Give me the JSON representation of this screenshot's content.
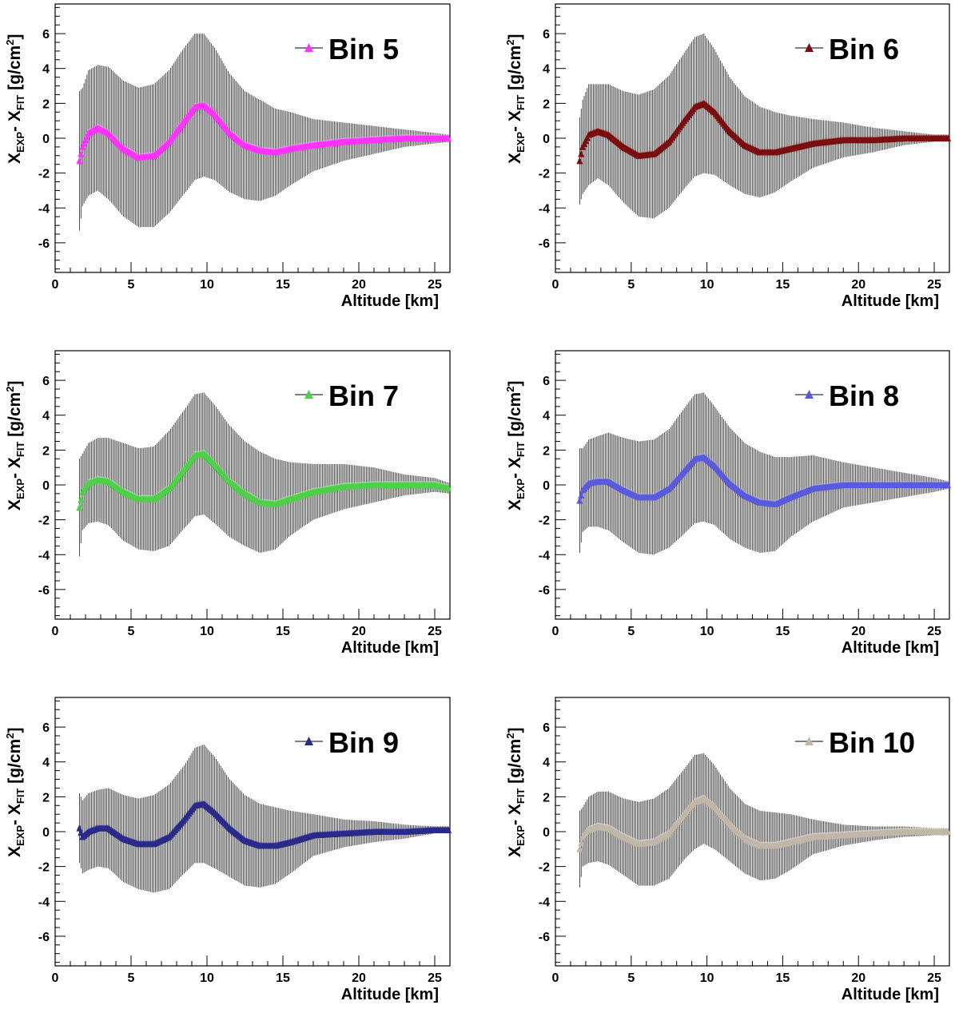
{
  "chart_data": [
    {
      "type": "line",
      "legend_label": "Bin 5",
      "color": "#ff33ff",
      "xlabel": "Altitude  [km]",
      "ylabel": {
        "base1": "X",
        "sub1": "EXP",
        "sep": "- ",
        "base2": "X",
        "sub2": "FIT",
        "unit_a": "[g/cm",
        "unit_sup": "2",
        "unit_b": "]"
      },
      "xlim": [
        0,
        26
      ],
      "ylim": [
        -7.7,
        7.7
      ],
      "x_ticks": [
        "0",
        "5",
        "10",
        "15",
        "20",
        "25"
      ],
      "y_ticks": [
        "-6",
        "-4",
        "-2",
        "0",
        "2",
        "4",
        "6"
      ],
      "legend_position": "top-right",
      "series": [
        {
          "name": "Bin 5",
          "x": [
            1.6,
            1.8,
            2.2,
            2.8,
            3.5,
            4.5,
            5.5,
            6.5,
            7.5,
            8.5,
            9.2,
            9.8,
            10.5,
            11.5,
            12.5,
            13.5,
            14.5,
            15.5,
            17,
            19,
            21,
            23,
            25,
            26
          ],
          "y": [
            -1.3,
            -0.5,
            0.3,
            0.6,
            0.3,
            -0.6,
            -1.1,
            -1.0,
            -0.2,
            1.0,
            1.8,
            1.9,
            1.4,
            0.3,
            -0.4,
            -0.7,
            -0.8,
            -0.6,
            -0.4,
            -0.2,
            -0.1,
            0.0,
            0.0,
            0.0
          ],
          "err": [
            4.0,
            3.4,
            3.6,
            3.6,
            3.8,
            3.9,
            4.0,
            4.1,
            4.1,
            4.2,
            4.2,
            4.1,
            3.8,
            3.4,
            3.1,
            2.9,
            2.5,
            2.1,
            1.5,
            1.1,
            0.8,
            0.5,
            0.3,
            0.2
          ]
        }
      ]
    },
    {
      "type": "line",
      "legend_label": "Bin 6",
      "color": "#7a0e0e",
      "xlabel": "Altitude  [km]",
      "ylabel": {
        "base1": "X",
        "sub1": "EXP",
        "sep": "- ",
        "base2": "X",
        "sub2": "FIT",
        "unit_a": "[g/cm",
        "unit_sup": "2",
        "unit_b": "]"
      },
      "xlim": [
        0,
        26
      ],
      "ylim": [
        -7.7,
        7.7
      ],
      "x_ticks": [
        "0",
        "5",
        "10",
        "15",
        "20",
        "25"
      ],
      "y_ticks": [
        "-6",
        "-4",
        "-2",
        "0",
        "2",
        "4",
        "6"
      ],
      "legend_position": "top-right",
      "series": [
        {
          "name": "Bin 6",
          "x": [
            1.6,
            1.8,
            2.2,
            2.8,
            3.5,
            4.5,
            5.5,
            6.5,
            7.5,
            8.5,
            9.2,
            9.8,
            10.5,
            11.5,
            12.5,
            13.5,
            14.5,
            15.5,
            17,
            19,
            21,
            23,
            25,
            26
          ],
          "y": [
            -1.3,
            -0.5,
            0.2,
            0.4,
            0.2,
            -0.5,
            -1.0,
            -0.9,
            -0.2,
            1.0,
            1.8,
            2.0,
            1.5,
            0.4,
            -0.4,
            -0.8,
            -0.8,
            -0.6,
            -0.3,
            -0.1,
            -0.1,
            0.0,
            0.0,
            0.0
          ],
          "err": [
            2.5,
            2.7,
            2.9,
            2.7,
            2.9,
            3.2,
            3.5,
            3.7,
            3.8,
            3.9,
            4.0,
            4.0,
            3.6,
            3.1,
            2.8,
            2.6,
            2.3,
            1.9,
            1.4,
            1.0,
            0.7,
            0.4,
            0.2,
            0.2
          ]
        }
      ]
    },
    {
      "type": "line",
      "legend_label": "Bin 7",
      "color": "#4fcf4a",
      "xlabel": "Altitude  [km]",
      "ylabel": {
        "base1": "X",
        "sub1": "EXP",
        "sep": "- ",
        "base2": "X",
        "sub2": "FIT",
        "unit_a": "[g/cm",
        "unit_sup": "2",
        "unit_b": "]"
      },
      "xlim": [
        0,
        26
      ],
      "ylim": [
        -7.7,
        7.7
      ],
      "x_ticks": [
        "0",
        "5",
        "10",
        "15",
        "20",
        "25"
      ],
      "y_ticks": [
        "-6",
        "-4",
        "-2",
        "0",
        "2",
        "4",
        "6"
      ],
      "legend_position": "top-right",
      "series": [
        {
          "name": "Bin 7",
          "x": [
            1.6,
            1.8,
            2.2,
            2.8,
            3.5,
            4.5,
            5.5,
            6.5,
            7.5,
            8.5,
            9.2,
            9.8,
            10.5,
            11.5,
            12.5,
            13.5,
            14.5,
            15.5,
            17,
            19,
            21,
            23,
            25,
            26
          ],
          "y": [
            -1.3,
            -0.4,
            0.1,
            0.3,
            0.2,
            -0.4,
            -0.8,
            -0.8,
            -0.2,
            0.9,
            1.7,
            1.8,
            1.2,
            0.2,
            -0.5,
            -1.0,
            -1.1,
            -0.8,
            -0.4,
            -0.1,
            0.0,
            0.0,
            0.0,
            -0.2
          ],
          "err": [
            2.8,
            2.2,
            2.3,
            2.4,
            2.5,
            2.8,
            2.9,
            3.0,
            3.3,
            3.4,
            3.5,
            3.5,
            3.4,
            3.2,
            3.0,
            2.9,
            2.6,
            2.1,
            1.6,
            1.3,
            1.0,
            0.6,
            0.4,
            0.3
          ]
        }
      ]
    },
    {
      "type": "line",
      "legend_label": "Bin 8",
      "color": "#5a5adc",
      "xlabel": "Altitude  [km]",
      "ylabel": {
        "base1": "X",
        "sub1": "EXP",
        "sep": "- ",
        "base2": "X",
        "sub2": "FIT",
        "unit_a": "[g/cm",
        "unit_sup": "2",
        "unit_b": "]"
      },
      "xlim": [
        0,
        26
      ],
      "ylim": [
        -7.7,
        7.7
      ],
      "x_ticks": [
        "0",
        "5",
        "10",
        "15",
        "20",
        "25"
      ],
      "y_ticks": [
        "-6",
        "-4",
        "-2",
        "0",
        "2",
        "4",
        "6"
      ],
      "legend_position": "top-right",
      "series": [
        {
          "name": "Bin 8",
          "x": [
            1.6,
            1.8,
            2.2,
            2.8,
            3.5,
            4.5,
            5.5,
            6.5,
            7.5,
            8.5,
            9.2,
            9.8,
            10.5,
            11.5,
            12.5,
            13.5,
            14.5,
            15.5,
            17,
            19,
            21,
            23,
            25,
            26
          ],
          "y": [
            -0.9,
            -0.3,
            0.1,
            0.2,
            0.2,
            -0.3,
            -0.7,
            -0.7,
            -0.2,
            0.8,
            1.5,
            1.6,
            1.1,
            0.1,
            -0.6,
            -1.0,
            -1.1,
            -0.7,
            -0.2,
            0.0,
            0.0,
            0.0,
            0.0,
            0.0
          ],
          "err": [
            3.0,
            2.4,
            2.5,
            2.6,
            2.8,
            3.0,
            3.2,
            3.3,
            3.4,
            3.6,
            3.7,
            3.7,
            3.4,
            3.2,
            3.0,
            2.9,
            2.7,
            2.3,
            1.9,
            1.3,
            1.0,
            0.7,
            0.4,
            0.2
          ]
        }
      ]
    },
    {
      "type": "line",
      "legend_label": "Bin 9",
      "color": "#2a2a8a",
      "xlabel": "Altitude  [km]",
      "ylabel": {
        "base1": "X",
        "sub1": "EXP",
        "sep": "- ",
        "base2": "X",
        "sub2": "FIT",
        "unit_a": "[g/cm",
        "unit_sup": "2",
        "unit_b": "]"
      },
      "xlim": [
        0,
        26
      ],
      "ylim": [
        -7.7,
        7.7
      ],
      "x_ticks": [
        "0",
        "5",
        "10",
        "15",
        "20",
        "25"
      ],
      "y_ticks": [
        "-6",
        "-4",
        "-2",
        "0",
        "2",
        "4",
        "6"
      ],
      "legend_position": "top-right",
      "series": [
        {
          "name": "Bin 9",
          "x": [
            1.6,
            1.8,
            2.2,
            2.8,
            3.5,
            4.5,
            5.5,
            6.5,
            7.5,
            8.5,
            9.2,
            9.8,
            10.5,
            11.5,
            12.5,
            13.5,
            14.5,
            15.5,
            17,
            19,
            21,
            23,
            25,
            26
          ],
          "y": [
            0.2,
            -0.3,
            0.0,
            0.2,
            0.2,
            -0.4,
            -0.7,
            -0.7,
            -0.3,
            0.7,
            1.5,
            1.6,
            1.1,
            0.2,
            -0.5,
            -0.8,
            -0.8,
            -0.6,
            -0.2,
            -0.1,
            0.0,
            0.0,
            0.1,
            0.1
          ],
          "err": [
            2.0,
            2.1,
            2.2,
            2.2,
            2.3,
            2.5,
            2.6,
            2.8,
            3.0,
            3.1,
            3.3,
            3.4,
            3.2,
            2.8,
            2.6,
            2.4,
            2.2,
            1.8,
            1.2,
            0.8,
            0.6,
            0.4,
            0.2,
            0.2
          ]
        }
      ]
    },
    {
      "type": "line",
      "legend_label": "Bin 10",
      "color": "#c2b6a8",
      "xlabel": "Altitude  [km]",
      "ylabel": {
        "base1": "X",
        "sub1": "EXP",
        "sep": "- ",
        "base2": "X",
        "sub2": "FIT",
        "unit_a": "[g/cm",
        "unit_sup": "2",
        "unit_b": "]"
      },
      "xlim": [
        0,
        26
      ],
      "ylim": [
        -7.7,
        7.7
      ],
      "x_ticks": [
        "0",
        "5",
        "10",
        "15",
        "20",
        "25"
      ],
      "y_ticks": [
        "-6",
        "-4",
        "-2",
        "0",
        "2",
        "4",
        "6"
      ],
      "legend_position": "top-right",
      "series": [
        {
          "name": "Bin 10",
          "x": [
            1.6,
            1.8,
            2.2,
            2.8,
            3.5,
            4.5,
            5.5,
            6.5,
            7.5,
            8.5,
            9.2,
            9.8,
            10.5,
            11.5,
            12.5,
            13.5,
            14.5,
            15.5,
            17,
            19,
            21,
            23,
            25,
            26
          ],
          "y": [
            -1.0,
            -0.3,
            0.1,
            0.3,
            0.2,
            -0.3,
            -0.7,
            -0.6,
            -0.1,
            1.0,
            1.7,
            1.9,
            1.4,
            0.4,
            -0.4,
            -0.8,
            -0.8,
            -0.6,
            -0.3,
            -0.2,
            -0.1,
            0.0,
            0.0,
            0.0
          ],
          "err": [
            2.2,
            1.7,
            1.9,
            2.0,
            2.1,
            2.2,
            2.4,
            2.5,
            2.6,
            2.6,
            2.7,
            2.6,
            2.4,
            2.1,
            2.0,
            2.0,
            1.9,
            1.6,
            1.0,
            0.6,
            0.4,
            0.3,
            0.2,
            0.2
          ]
        }
      ]
    }
  ]
}
